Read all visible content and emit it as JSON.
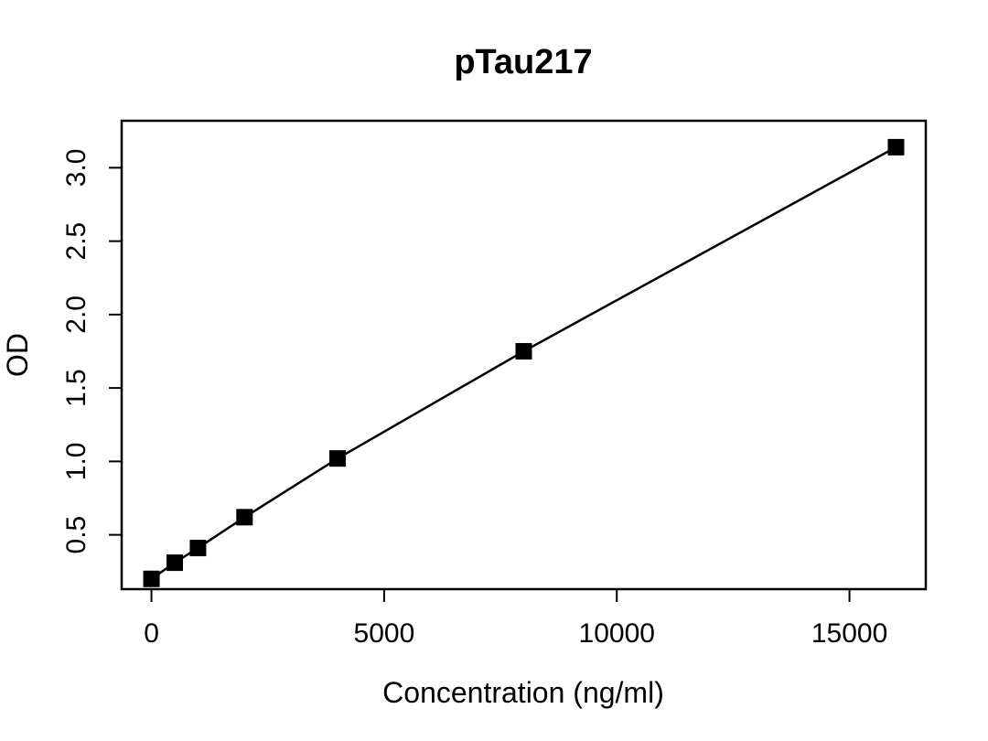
{
  "chart_data": {
    "type": "line",
    "title": "pTau217",
    "xlabel": "Concentration (ng/ml)",
    "ylabel": "OD",
    "xlim": [
      -640,
      16640
    ],
    "ylim": [
      0.13,
      3.32
    ],
    "xticks": [
      0,
      5000,
      10000,
      15000
    ],
    "xtick_labels": [
      "0",
      "5000",
      "10000",
      "15000"
    ],
    "yticks": [
      0.5,
      1.0,
      1.5,
      2.0,
      2.5,
      3.0
    ],
    "ytick_labels": [
      "0.5",
      "1.0",
      "1.5",
      "2.0",
      "2.5",
      "3.0"
    ],
    "grid": false,
    "marker": "square",
    "line_color": "#000000",
    "marker_color": "#000000",
    "series": [
      {
        "x": [
          0,
          500,
          1000,
          2000,
          4000,
          8000,
          16000
        ],
        "y": [
          0.2,
          0.31,
          0.41,
          0.62,
          1.02,
          1.75,
          3.14
        ]
      }
    ]
  }
}
